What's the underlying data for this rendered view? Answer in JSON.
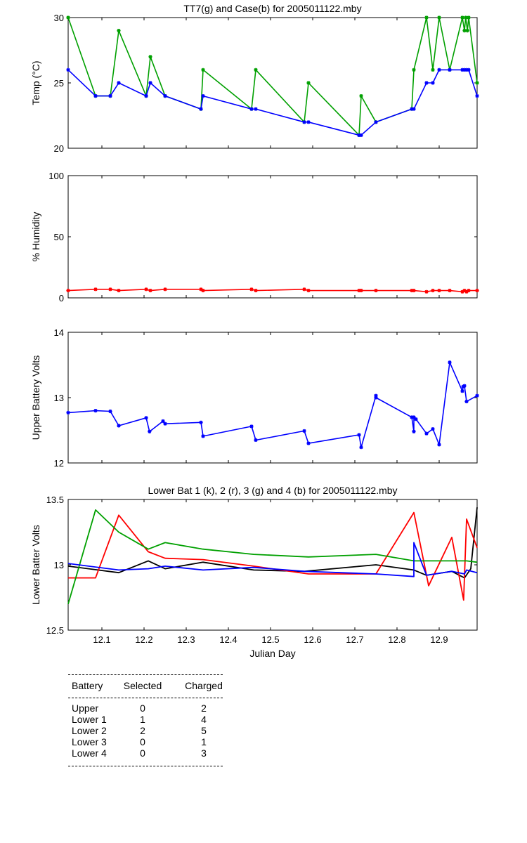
{
  "chart_data": [
    {
      "type": "line",
      "title": "TT7(g) and Case(b) for 2005011122.mby",
      "xlabel": "",
      "ylabel": "Temp  (°C)",
      "xlim": [
        12.02,
        12.99
      ],
      "ylim": [
        20,
        30
      ],
      "yticks": [
        "20",
        "25",
        "30"
      ],
      "series": [
        {
          "color": "#00a000",
          "x": [
            12.02,
            12.085,
            12.12,
            12.14,
            12.205,
            12.215,
            12.25,
            12.335,
            12.34,
            12.455,
            12.465,
            12.58,
            12.59,
            12.71,
            12.715,
            12.75,
            12.835,
            12.84,
            12.87,
            12.885,
            12.9,
            12.925,
            12.955,
            12.96,
            12.963,
            12.967,
            12.97,
            12.99
          ],
          "y": [
            30,
            24,
            24,
            29,
            24,
            27,
            24,
            23,
            26,
            23,
            26,
            22,
            25,
            21,
            24,
            22,
            23,
            26,
            30,
            26,
            30,
            26,
            30,
            29,
            30,
            29,
            30,
            25
          ]
        },
        {
          "color": "#0000ff",
          "x": [
            12.02,
            12.085,
            12.12,
            12.14,
            12.205,
            12.215,
            12.25,
            12.335,
            12.34,
            12.455,
            12.465,
            12.58,
            12.59,
            12.71,
            12.715,
            12.75,
            12.835,
            12.84,
            12.87,
            12.885,
            12.9,
            12.925,
            12.955,
            12.96,
            12.965,
            12.97,
            12.99
          ],
          "y": [
            26,
            24,
            24,
            25,
            24,
            25,
            24,
            23,
            24,
            23,
            23,
            22,
            22,
            21,
            21,
            22,
            23,
            23,
            25,
            25,
            26,
            26,
            26,
            26,
            26,
            26,
            24
          ]
        }
      ]
    },
    {
      "type": "line",
      "title": "",
      "xlabel": "",
      "ylabel": "% Humidity",
      "xlim": [
        12.02,
        12.99
      ],
      "ylim": [
        0,
        100
      ],
      "yticks": [
        "0",
        "50",
        "100"
      ],
      "series": [
        {
          "color": "#ff0000",
          "x": [
            12.02,
            12.085,
            12.12,
            12.14,
            12.205,
            12.215,
            12.25,
            12.335,
            12.34,
            12.455,
            12.465,
            12.58,
            12.59,
            12.71,
            12.715,
            12.75,
            12.835,
            12.84,
            12.87,
            12.885,
            12.9,
            12.925,
            12.955,
            12.96,
            12.965,
            12.97,
            12.99
          ],
          "y": [
            6,
            7,
            7,
            6,
            7,
            6,
            7,
            7,
            6,
            7,
            6,
            7,
            6,
            6,
            6,
            6,
            6,
            6,
            5,
            6,
            6,
            6,
            5,
            6,
            5,
            6,
            6
          ]
        }
      ]
    },
    {
      "type": "line",
      "title": "",
      "xlabel": "",
      "ylabel": "Upper Battery Volts",
      "xlim": [
        12.02,
        12.99
      ],
      "ylim": [
        12,
        14
      ],
      "yticks": [
        "12",
        "13",
        "14"
      ],
      "series": [
        {
          "color": "#0000ff",
          "x": [
            12.02,
            12.085,
            12.12,
            12.14,
            12.205,
            12.213,
            12.245,
            12.25,
            12.335,
            12.34,
            12.455,
            12.465,
            12.58,
            12.59,
            12.71,
            12.715,
            12.75,
            12.75,
            12.835,
            12.84,
            12.84,
            12.845,
            12.87,
            12.885,
            12.9,
            12.925,
            12.955,
            12.957,
            12.96,
            12.965,
            12.99
          ],
          "y": [
            12.77,
            12.8,
            12.79,
            12.57,
            12.69,
            12.48,
            12.64,
            12.6,
            12.62,
            12.41,
            12.56,
            12.35,
            12.49,
            12.3,
            12.43,
            12.24,
            13.03,
            13.0,
            12.7,
            12.48,
            12.7,
            12.67,
            12.45,
            12.52,
            12.28,
            13.54,
            13.1,
            13.17,
            13.18,
            12.94,
            13.03
          ]
        }
      ]
    },
    {
      "type": "line",
      "title": "Lower Bat 1 (k), 2 (r), 3 (g) and 4 (b) for 2005011122.mby",
      "xlabel": "Julian Day",
      "ylabel": "Lower Batter Volts",
      "xlim": [
        12.02,
        12.99
      ],
      "ylim": [
        12.5,
        13.5
      ],
      "yticks": [
        "12.5",
        "13",
        "13.5"
      ],
      "xticks": [
        "12.1",
        "12.2",
        "12.3",
        "12.4",
        "12.5",
        "12.6",
        "12.7",
        "12.8",
        "12.9"
      ],
      "series": [
        {
          "color": "#000000",
          "x": [
            12.02,
            12.14,
            12.21,
            12.25,
            12.34,
            12.46,
            12.58,
            12.75,
            12.84,
            12.87,
            12.93,
            12.96,
            12.975,
            12.99
          ],
          "y": [
            12.99,
            12.94,
            13.03,
            12.97,
            13.02,
            12.96,
            12.95,
            13.0,
            12.96,
            12.92,
            12.95,
            12.9,
            12.97,
            13.44
          ]
        },
        {
          "color": "#ff0000",
          "x": [
            12.02,
            12.085,
            12.14,
            12.21,
            12.25,
            12.34,
            12.46,
            12.59,
            12.715,
            12.75,
            12.84,
            12.875,
            12.93,
            12.958,
            12.965,
            12.99
          ],
          "y": [
            12.9,
            12.9,
            13.38,
            13.1,
            13.05,
            13.04,
            12.99,
            12.93,
            12.93,
            12.93,
            13.4,
            12.84,
            13.21,
            12.73,
            13.35,
            13.13
          ]
        },
        {
          "color": "#00a000",
          "x": [
            12.02,
            12.085,
            12.14,
            12.21,
            12.25,
            12.34,
            12.46,
            12.59,
            12.75,
            12.84,
            12.965,
            12.99
          ],
          "y": [
            12.7,
            13.42,
            13.25,
            13.12,
            13.17,
            13.12,
            13.08,
            13.06,
            13.08,
            13.03,
            13.03,
            13.02
          ]
        },
        {
          "color": "#0000ff",
          "x": [
            12.02,
            12.14,
            12.21,
            12.25,
            12.34,
            12.46,
            12.58,
            12.75,
            12.84,
            12.84,
            12.87,
            12.93,
            12.96,
            12.965,
            12.99
          ],
          "y": [
            13.01,
            12.96,
            12.97,
            12.99,
            12.96,
            12.98,
            12.95,
            12.93,
            12.91,
            13.17,
            12.92,
            12.95,
            12.93,
            12.96,
            12.94
          ]
        }
      ]
    }
  ],
  "battery_table": {
    "headers": [
      "Battery",
      "Selected",
      "Charged"
    ],
    "rows": [
      [
        "Upper",
        "0",
        "2"
      ],
      [
        "Lower 1",
        "1",
        "4"
      ],
      [
        "Lower 2",
        "2",
        "5"
      ],
      [
        "Lower 3",
        "0",
        "1"
      ],
      [
        "Lower 4",
        "0",
        "3"
      ]
    ]
  }
}
